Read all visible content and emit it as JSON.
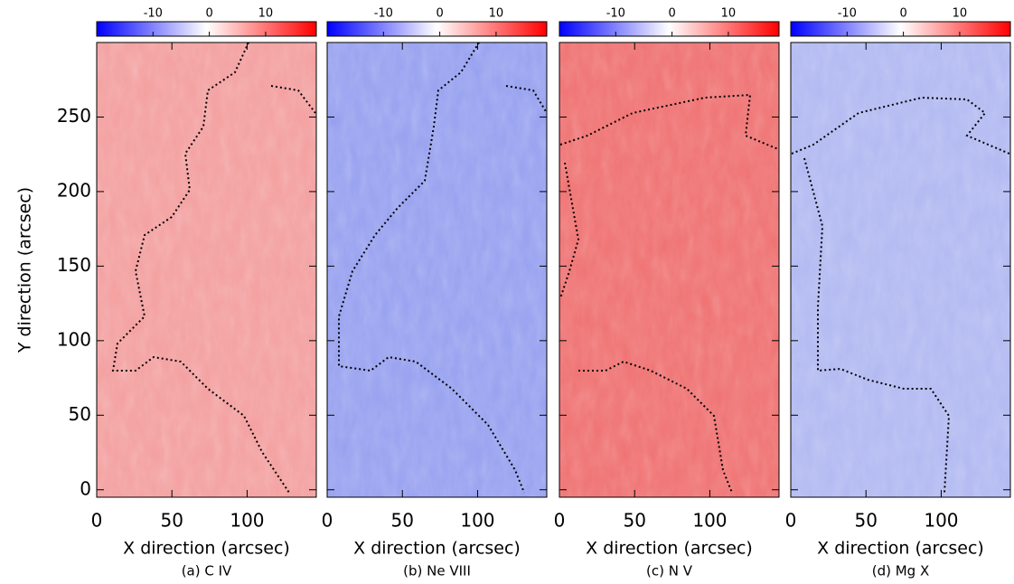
{
  "chart_data": [
    {
      "type": "heatmap",
      "caption": "(a) C IV",
      "xlabel": "X direction (arcsec)",
      "ylabel": "Y direction (arcsec)",
      "xlim": [
        0,
        146
      ],
      "ylim": [
        -5,
        300
      ],
      "xticks": [
        0,
        50,
        100
      ],
      "yticks": [
        0,
        50,
        100,
        150,
        200,
        250
      ],
      "color": "#f4a0a0",
      "colorbar": {
        "lim": [
          -20,
          19
        ],
        "ticks": [
          -10,
          0,
          10
        ],
        "colors": [
          "#0000ff",
          "#ffffff",
          "#ff0000"
        ]
      }
    },
    {
      "type": "heatmap",
      "caption": "(b) Ne VIII",
      "xlabel": "X direction (arcsec)",
      "xlim": [
        0,
        146
      ],
      "ylim": [
        -5,
        300
      ],
      "xticks": [
        0,
        50,
        100
      ],
      "yticks": [
        0,
        50,
        100,
        150,
        200,
        250
      ],
      "color": "#98a2f0",
      "colorbar": {
        "lim": [
          -20,
          19
        ],
        "ticks": [
          -10,
          0,
          10
        ],
        "colors": [
          "#0000ff",
          "#ffffff",
          "#ff0000"
        ]
      }
    },
    {
      "type": "heatmap",
      "caption": "(c) N V",
      "xlabel": "X direction (arcsec)",
      "xlim": [
        0,
        146
      ],
      "ylim": [
        -5,
        300
      ],
      "xticks": [
        0,
        50,
        100
      ],
      "yticks": [
        0,
        50,
        100,
        150,
        200,
        250
      ],
      "color": "#f07474",
      "colorbar": {
        "lim": [
          -20,
          19
        ],
        "ticks": [
          -10,
          0,
          10
        ],
        "colors": [
          "#0000ff",
          "#ffffff",
          "#ff0000"
        ]
      }
    },
    {
      "type": "heatmap",
      "caption": "(d) Mg X",
      "xlabel": "X direction (arcsec)",
      "xlim": [
        0,
        146
      ],
      "ylim": [
        -5,
        300
      ],
      "xticks": [
        0,
        50,
        100
      ],
      "yticks": [
        0,
        50,
        100,
        150,
        200,
        250
      ],
      "color": "#b2baf2",
      "colorbar": {
        "lim": [
          -20,
          19
        ],
        "ticks": [
          -10,
          0,
          10
        ],
        "colors": [
          "#0000ff",
          "#ffffff",
          "#ff0000"
        ]
      }
    }
  ]
}
